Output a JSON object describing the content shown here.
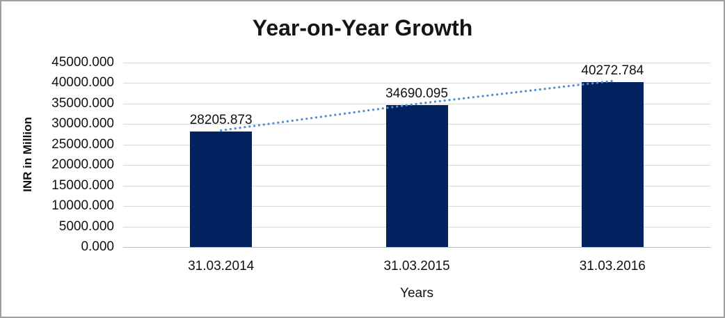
{
  "chart_data": {
    "type": "bar",
    "title": "Year-on-Year Growth",
    "xlabel": "Years",
    "ylabel": "INR in Million",
    "categories": [
      "31.03.2014",
      "31.03.2015",
      "31.03.2016"
    ],
    "values": [
      28205.873,
      34690.095,
      40272.784
    ],
    "data_labels": [
      "28205.873",
      "34690.095",
      "40272.784"
    ],
    "y_ticks": [
      "0.000",
      "5000.000",
      "10000.000",
      "15000.000",
      "20000.000",
      "25000.000",
      "30000.000",
      "35000.000",
      "40000.000",
      "45000.000"
    ],
    "y_tick_values": [
      0,
      5000,
      10000,
      15000,
      20000,
      25000,
      30000,
      35000,
      40000,
      45000
    ],
    "ylim": [
      0,
      45000
    ],
    "grid": true,
    "legend_position": "none",
    "has_trendline": true,
    "colors": {
      "bar": "#022260",
      "trendline": "#4f8fd2",
      "gridline": "#d9d9d9",
      "axis_line": "#bfbfbf",
      "text": "#111111"
    }
  }
}
